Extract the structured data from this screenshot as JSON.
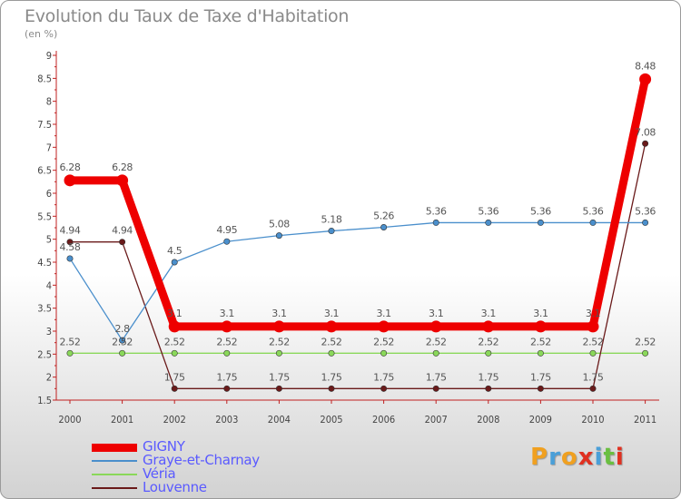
{
  "title": "Evolution du Taux de Taxe d'Habitation",
  "subtitle": "(en %)",
  "logo": {
    "text": "Proxiti",
    "colors": [
      "#f0a020",
      "#4a9fd8",
      "#f0a020",
      "#e03020",
      "#4a9fd8",
      "#6abf40",
      "#e03020"
    ]
  },
  "chart_data": {
    "type": "line",
    "x": [
      "2000",
      "2001",
      "2002",
      "2003",
      "2004",
      "2005",
      "2006",
      "2007",
      "2008",
      "2009",
      "2010",
      "2011"
    ],
    "ylim": [
      1.5,
      9
    ],
    "yticks": [
      "1.5",
      "2",
      "2.5",
      "3",
      "3.5",
      "4",
      "4.5",
      "5",
      "5.5",
      "6",
      "6.5",
      "7",
      "7.5",
      "8",
      "8.5",
      "9"
    ],
    "grid": false,
    "legend": "bottom-left",
    "series": [
      {
        "name": "GIGNY",
        "color": "#ee0000",
        "values": [
          6.28,
          6.28,
          3.1,
          3.1,
          3.1,
          3.1,
          3.1,
          3.1,
          3.1,
          3.1,
          3.1,
          8.48
        ],
        "labels": [
          "6.28",
          "6.28",
          "3.1",
          "3.1",
          "3.1",
          "3.1",
          "3.1",
          "3.1",
          "3.1",
          "3.1",
          "3.1",
          "8.48"
        ]
      },
      {
        "name": "Graye-et-Charnay",
        "color": "#4a8fcc",
        "values": [
          4.58,
          2.8,
          4.5,
          4.95,
          5.08,
          5.18,
          5.26,
          5.36,
          5.36,
          5.36,
          5.36,
          5.36
        ],
        "labels": [
          "4.58",
          "2.8",
          "4.5",
          "4.95",
          "5.08",
          "5.18",
          "5.26",
          "5.36",
          "5.36",
          "5.36",
          "5.36",
          "5.36"
        ]
      },
      {
        "name": "Véria",
        "color": "#8ad85a",
        "values": [
          2.52,
          2.52,
          2.52,
          2.52,
          2.52,
          2.52,
          2.52,
          2.52,
          2.52,
          2.52,
          2.52,
          2.52
        ],
        "labels": [
          "2.52",
          "2.52",
          "2.52",
          "2.52",
          "2.52",
          "2.52",
          "2.52",
          "2.52",
          "2.52",
          "2.52",
          "2.52",
          "2.52"
        ]
      },
      {
        "name": "Louvenne",
        "color": "#6a1a1a",
        "values": [
          4.94,
          4.94,
          1.75,
          1.75,
          1.75,
          1.75,
          1.75,
          1.75,
          1.75,
          1.75,
          1.75,
          7.08
        ],
        "labels": [
          "4.94",
          "4.94",
          "1.75",
          "1.75",
          "1.75",
          "1.75",
          "1.75",
          "1.75",
          "1.75",
          "1.75",
          "1.75",
          "7.08"
        ]
      }
    ]
  }
}
